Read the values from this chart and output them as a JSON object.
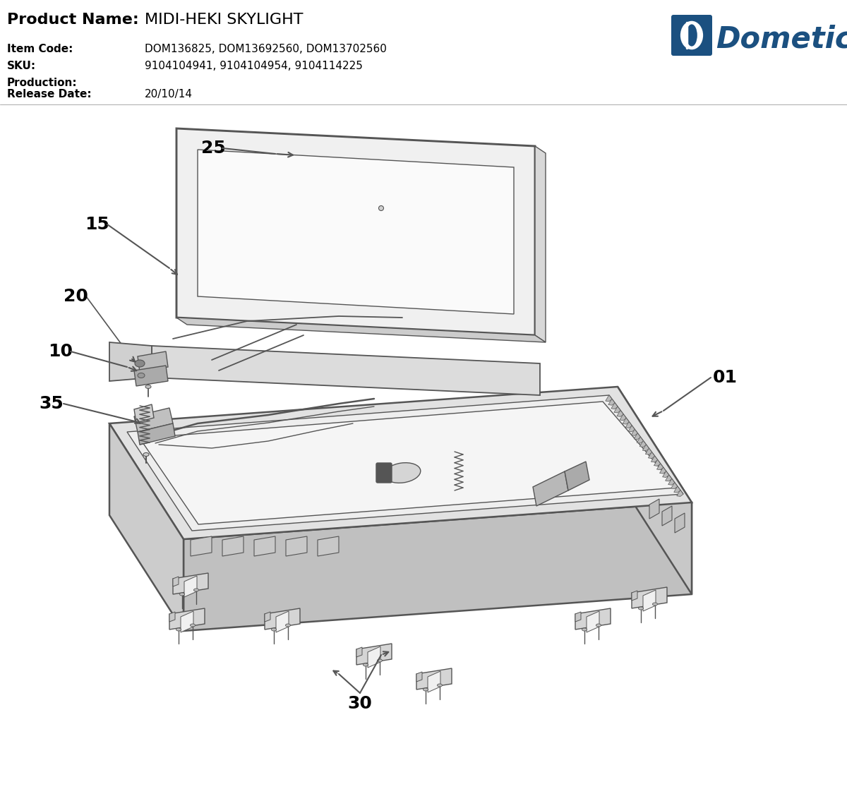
{
  "background_color": "#ffffff",
  "line_color": "#555555",
  "label_color": "#000000",
  "dometic_color": "#1b5080",
  "header": {
    "product_name_label": "Product Name:",
    "product_name_value": "MIDI-HEKI SKYLIGHT",
    "item_code_label": "Item Code:",
    "item_code_value": "DOM136825, DOM13692560, DOM13702560",
    "sku_label": "SKU:",
    "sku_value": "9104104941, 9104104954, 9104114225",
    "production_label": "Production:",
    "production_value": "",
    "release_date_label": "Release Date:",
    "release_date_value": "20/10/14"
  },
  "figsize": [
    12.0,
    11.18
  ],
  "dpi": 100
}
